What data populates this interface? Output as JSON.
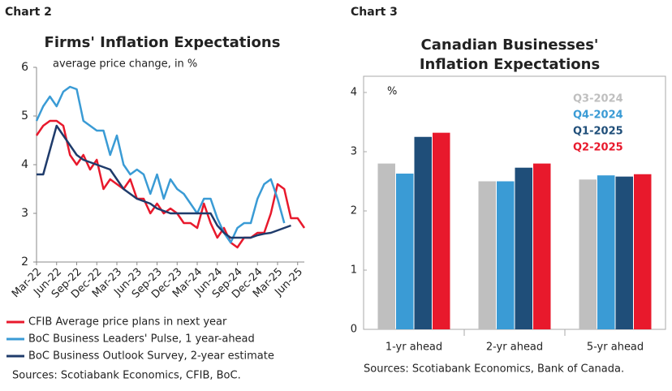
{
  "chart_data": [
    {
      "type": "line",
      "label": "Chart 2",
      "title": "Firms' Inflation Expectations",
      "subtitle": "average price change, in %",
      "categories": [
        "Mar-22",
        null,
        null,
        "Jun-22",
        null,
        null,
        "Sep-22",
        null,
        null,
        "Dec-22",
        null,
        null,
        "Mar-23",
        null,
        null,
        "Jun-23",
        null,
        null,
        "Sep-23",
        null,
        null,
        "Dec-23",
        null,
        null,
        "Mar-24",
        null,
        null,
        "Jun-24",
        null,
        null,
        "Sep-24",
        null,
        null,
        "Dec-24",
        null,
        null,
        "Mar-25",
        null,
        null,
        "Jun-25",
        null
      ],
      "series": [
        {
          "name": "CFIB Average price plans in next year",
          "color": "#e8192c",
          "values": [
            4.6,
            4.8,
            4.9,
            4.9,
            4.8,
            4.2,
            4.0,
            4.2,
            3.9,
            4.1,
            3.5,
            3.7,
            3.6,
            3.5,
            3.7,
            3.3,
            3.3,
            3.0,
            3.2,
            3.0,
            3.1,
            3.0,
            2.8,
            2.8,
            2.7,
            3.2,
            2.8,
            2.5,
            2.7,
            2.4,
            2.3,
            2.5,
            2.5,
            2.6,
            2.6,
            3.0,
            3.6,
            3.5,
            2.9,
            2.9,
            2.7
          ]
        },
        {
          "name": "BoC Business Leaders' Pulse, 1 year-ahead",
          "color": "#3a9bd5",
          "values": [
            4.9,
            5.2,
            5.4,
            5.2,
            5.5,
            5.6,
            5.55,
            4.9,
            4.8,
            4.7,
            4.7,
            4.2,
            4.6,
            4.0,
            3.8,
            3.9,
            3.8,
            3.4,
            3.8,
            3.3,
            3.7,
            3.5,
            3.4,
            3.2,
            3.0,
            3.3,
            3.3,
            2.9,
            2.6,
            2.4,
            2.7,
            2.8,
            2.8,
            3.3,
            3.6,
            3.7,
            3.3,
            2.8,
            null,
            null,
            null
          ]
        },
        {
          "name": "BoC Business Outlook Survey, 2-year estimate",
          "color": "#1f3b6b",
          "values": [
            3.8,
            3.8,
            4.3,
            4.8,
            4.6,
            4.4,
            4.2,
            4.1,
            4.05,
            4.0,
            3.95,
            3.9,
            3.7,
            3.5,
            3.4,
            3.3,
            3.25,
            3.2,
            3.1,
            3.05,
            3.0,
            3.0,
            3.0,
            3.0,
            3.0,
            3.0,
            3.0,
            2.75,
            2.6,
            2.5,
            2.5,
            2.5,
            2.5,
            2.55,
            2.58,
            2.6,
            2.65,
            2.7,
            2.75,
            null,
            null
          ]
        }
      ],
      "ylim": [
        2,
        6
      ],
      "yticks": [
        2,
        3,
        4,
        5,
        6
      ],
      "grid": false,
      "source": "Sources: Scotiabank Economics, CFIB, BoC."
    },
    {
      "type": "bar",
      "label": "Chart 3",
      "title": [
        "Canadian Businesses'",
        "Inflation Expectations"
      ],
      "y_label": "%",
      "categories": [
        "1-yr ahead",
        "2-yr ahead",
        "5-yr ahead"
      ],
      "series": [
        {
          "name": "Q3-2024",
          "color": "#bfbfbf",
          "values": [
            2.8,
            2.5,
            2.53
          ]
        },
        {
          "name": "Q4-2024",
          "color": "#3a9bd5",
          "values": [
            2.63,
            2.5,
            2.6
          ]
        },
        {
          "name": "Q1-2025",
          "color": "#1f4e79",
          "values": [
            3.25,
            2.73,
            2.58
          ]
        },
        {
          "name": "Q2-2025",
          "color": "#e8192c",
          "values": [
            3.32,
            2.8,
            2.62
          ]
        }
      ],
      "ylim": [
        0,
        4
      ],
      "yticks": [
        0,
        1,
        2,
        3,
        4
      ],
      "grid": false,
      "source": "Sources: Scotiabank Economics, Bank of Canada."
    }
  ]
}
